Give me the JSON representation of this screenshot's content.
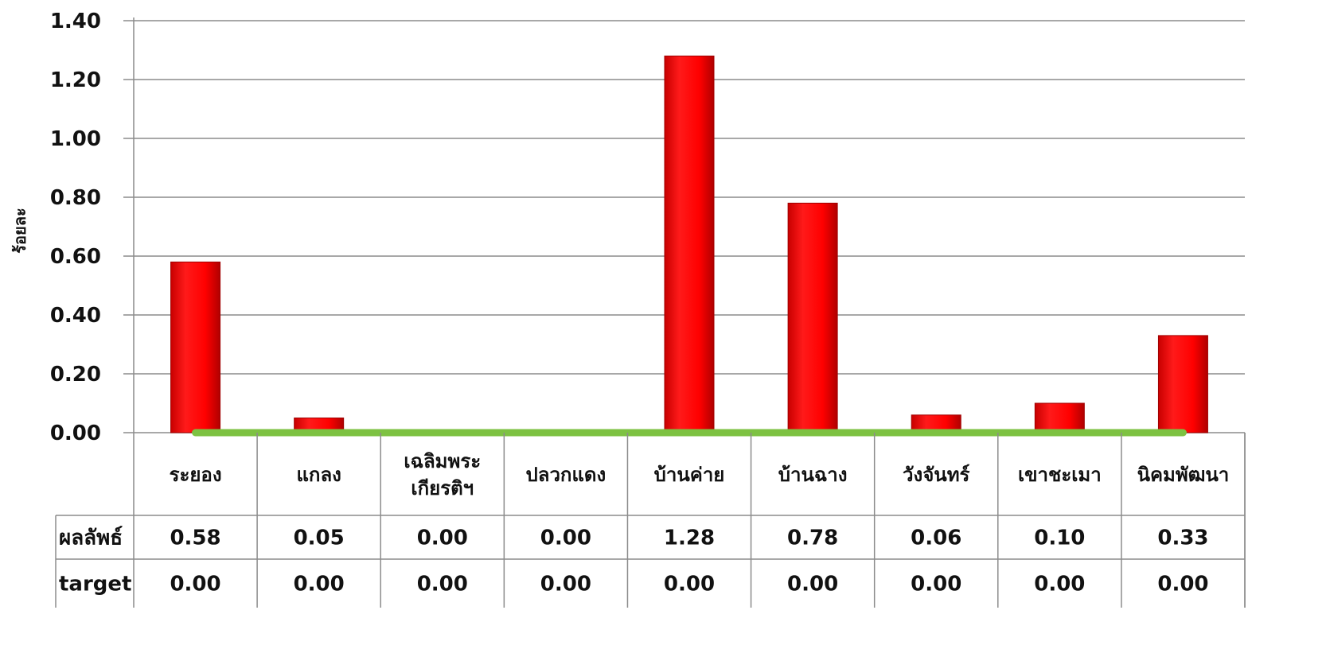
{
  "chart_data": {
    "type": "bar",
    "ylabel": "ร้อยละ",
    "ylim": [
      0,
      1.4
    ],
    "yticks": [
      "0.00",
      "0.20",
      "0.40",
      "0.60",
      "0.80",
      "1.00",
      "1.20",
      "1.40"
    ],
    "categories": [
      [
        "ระยอง"
      ],
      [
        "แกลง"
      ],
      [
        "เฉลิมพระ",
        "เกียรติฯ"
      ],
      [
        "ปลวกแดง"
      ],
      [
        "บ้านค่าย"
      ],
      [
        "บ้านฉาง"
      ],
      [
        "วังจันทร์"
      ],
      [
        "เขาชะเมา"
      ],
      [
        "นิคมพัฒนา"
      ]
    ],
    "series": [
      {
        "name": "ผลลัพธ์",
        "values": [
          0.58,
          0.05,
          0.0,
          0.0,
          1.28,
          0.78,
          0.06,
          0.1,
          0.33
        ],
        "color": "#ff0000",
        "display": "bar"
      },
      {
        "name": "target",
        "values": [
          0.0,
          0.0,
          0.0,
          0.0,
          0.0,
          0.0,
          0.0,
          0.0,
          0.0
        ],
        "color": "#7dc242",
        "display": "line"
      }
    ],
    "table_values": [
      [
        "0.58",
        "0.05",
        "0.00",
        "0.00",
        "1.28",
        "0.78",
        "0.06",
        "0.10",
        "0.33"
      ],
      [
        "0.00",
        "0.00",
        "0.00",
        "0.00",
        "0.00",
        "0.00",
        "0.00",
        "0.00",
        "0.00"
      ]
    ],
    "grid": true,
    "legend": "data-table"
  }
}
